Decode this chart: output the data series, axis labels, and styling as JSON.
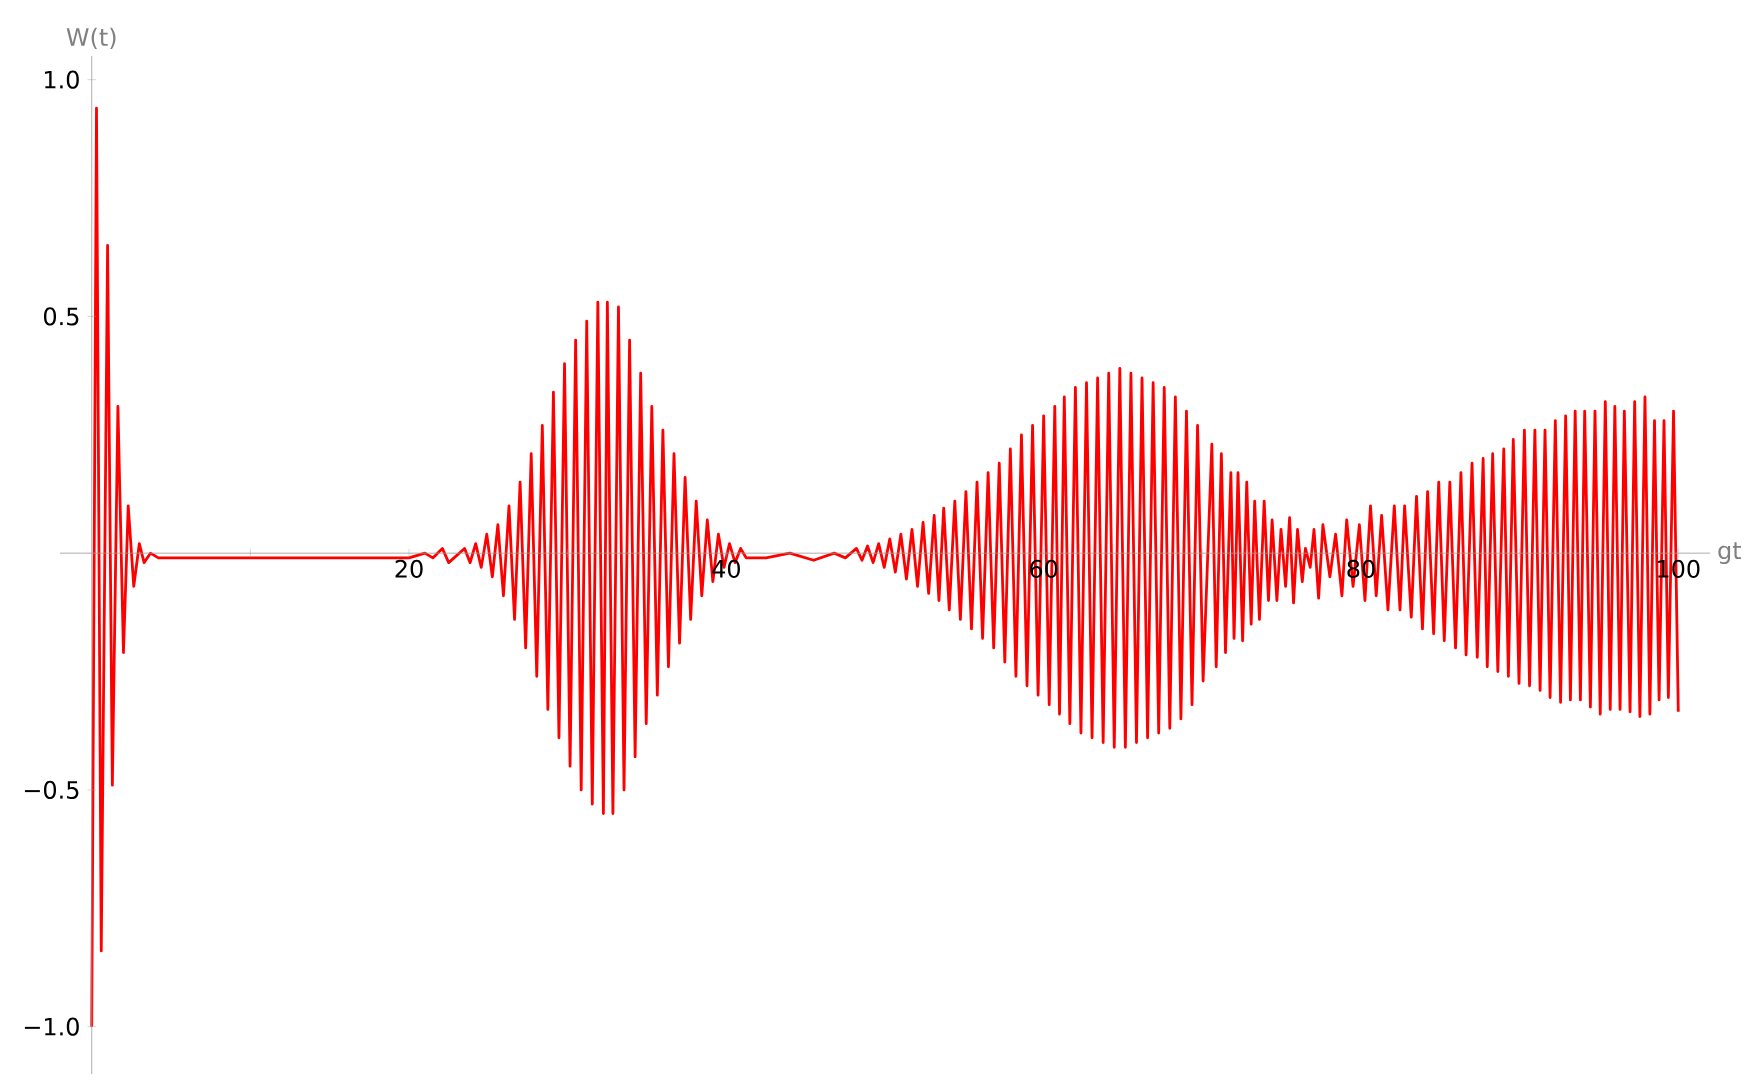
{
  "chart_data": {
    "type": "line",
    "xlabel": "gt",
    "ylabel": "W(t)",
    "xlim": [
      -2,
      102
    ],
    "ylim": [
      -1.1,
      1.05
    ],
    "xticks": [
      {
        "value": 10,
        "label": null
      },
      20,
      {
        "value": 30,
        "label": null
      },
      40,
      {
        "value": 50,
        "label": null
      },
      60,
      {
        "value": 70,
        "label": null
      },
      80,
      {
        "value": 90,
        "label": null
      },
      100
    ],
    "yticks": [
      {
        "value": -1,
        "label": "−1.0"
      },
      {
        "value": -0.5,
        "label": "−0.5"
      },
      {
        "value": 0.5,
        "label": "0.5"
      },
      {
        "value": 1,
        "label": "1.0"
      }
    ],
    "grid": false,
    "marker": "none",
    "line_style": "solid",
    "x": [
      0,
      0.3,
      0.6,
      1.0,
      1.3,
      1.65,
      2.0,
      2.3,
      2.65,
      3.0,
      3.3,
      3.7,
      4.2,
      10,
      20,
      21,
      21.5,
      22.1,
      22.5,
      23.5,
      23.85,
      24.2,
      24.55,
      24.9,
      25.25,
      25.6,
      25.95,
      26.3,
      26.65,
      27.0,
      27.35,
      27.7,
      28.05,
      28.4,
      28.75,
      29.1,
      29.45,
      29.8,
      30.15,
      30.5,
      30.85,
      31.2,
      31.55,
      31.9,
      32.25,
      32.5,
      32.85,
      33.2,
      33.55,
      33.9,
      34.25,
      34.6,
      34.95,
      35.3,
      35.65,
      36.0,
      36.35,
      36.7,
      37.05,
      37.4,
      37.75,
      38.1,
      38.45,
      38.8,
      39.15,
      39.5,
      39.85,
      40.2,
      40.55,
      40.9,
      41.25,
      42.5,
      44.0,
      45.5,
      46.8,
      47.5,
      48.2,
      48.55,
      48.9,
      49.25,
      49.6,
      49.95,
      50.3,
      50.65,
      51.0,
      51.35,
      51.7,
      52.05,
      52.4,
      52.75,
      53.1,
      53.4,
      53.7,
      54.05,
      54.4,
      54.75,
      55.1,
      55.45,
      55.8,
      56.15,
      56.5,
      56.85,
      57.2,
      57.55,
      57.9,
      58.25,
      58.6,
      58.95,
      59.3,
      59.65,
      60.0,
      60.35,
      60.7,
      61.0,
      61.3,
      61.65,
      62.0,
      62.35,
      62.7,
      63.05,
      63.4,
      63.75,
      64.1,
      64.45,
      64.8,
      65.15,
      65.5,
      65.85,
      66.2,
      66.55,
      66.9,
      67.25,
      67.6,
      67.95,
      68.3,
      68.65,
      69.0,
      69.35,
      69.7,
      70.05,
      70.6,
      70.875,
      71.2,
      71.46,
      71.8,
      72.0,
      72.25,
      72.54,
      72.8,
      73.08,
      73.3,
      73.6,
      73.9,
      74.17,
      74.4,
      74.7,
      74.96,
      75.25,
      75.5,
      75.75,
      76.0,
      76.3,
      76.5,
      76.8,
      77.04,
      77.33,
      77.6,
      78.04,
      78.4,
      78.8,
      79.1,
      79.5,
      79.9,
      80.25,
      80.6,
      80.96,
      81.3,
      81.7,
      82.1,
      82.46,
      82.75,
      83.17,
      83.5,
      83.875,
      84.2,
      84.58,
      84.9,
      85.25,
      85.6,
      85.96,
      86.3,
      86.625,
      87.0,
      87.33,
      87.7,
      87.96,
      88.3,
      88.625,
      89.0,
      89.29,
      89.6,
      89.96,
      90.3,
      90.625,
      90.96,
      91.29,
      91.6,
      91.92,
      92.25,
      92.58,
      92.9,
      93.2,
      93.5,
      93.83,
      94.1,
      94.46,
      94.75,
      95.08,
      95.4,
      95.71,
      96.0,
      96.33,
      96.6,
      96.96,
      97.25,
      97.58,
      97.9,
      98.21,
      98.5,
      98.79,
      99.1,
      99.375,
      99.7,
      100
    ],
    "series": [
      {
        "color": "#ff0000",
        "values": [
          -1.0,
          0.94,
          -0.84,
          0.65,
          -0.49,
          0.31,
          -0.21,
          0.1,
          -0.07,
          0.02,
          -0.02,
          0.0,
          -0.01,
          -0.01,
          -0.01,
          0.0,
          -0.01,
          0.01,
          -0.02,
          0.01,
          -0.02,
          0.02,
          -0.03,
          0.04,
          -0.05,
          0.06,
          -0.09,
          0.1,
          -0.14,
          0.15,
          -0.2,
          0.21,
          -0.26,
          0.27,
          -0.33,
          0.34,
          -0.39,
          0.4,
          -0.45,
          0.45,
          -0.5,
          0.49,
          -0.53,
          0.53,
          -0.55,
          0.53,
          -0.55,
          0.52,
          -0.5,
          0.45,
          -0.43,
          0.38,
          -0.36,
          0.31,
          -0.3,
          0.26,
          -0.24,
          0.21,
          -0.19,
          0.16,
          -0.14,
          0.11,
          -0.09,
          0.07,
          -0.06,
          0.04,
          -0.03,
          0.02,
          -0.02,
          0.01,
          -0.01,
          -0.01,
          0.0,
          -0.015,
          0.0,
          -0.01,
          0.01,
          -0.015,
          0.015,
          -0.02,
          0.02,
          -0.03,
          0.03,
          -0.04,
          0.04,
          -0.055,
          0.05,
          -0.07,
          0.065,
          -0.085,
          0.08,
          -0.1,
          0.095,
          -0.12,
          0.11,
          -0.14,
          0.13,
          -0.16,
          0.15,
          -0.18,
          0.17,
          -0.2,
          0.19,
          -0.23,
          0.22,
          -0.26,
          0.25,
          -0.28,
          0.27,
          -0.3,
          0.29,
          -0.32,
          0.31,
          -0.34,
          0.33,
          -0.36,
          0.35,
          -0.38,
          0.36,
          -0.39,
          0.37,
          -0.4,
          0.38,
          -0.41,
          0.39,
          -0.41,
          0.38,
          -0.4,
          0.37,
          -0.39,
          0.36,
          -0.38,
          0.35,
          -0.37,
          0.33,
          -0.35,
          0.3,
          -0.32,
          0.27,
          -0.27,
          0.23,
          -0.24,
          0.21,
          -0.21,
          0.17,
          -0.18,
          0.17,
          -0.185,
          0.15,
          -0.15,
          0.11,
          -0.14,
          0.11,
          -0.1,
          0.07,
          -0.1,
          0.05,
          -0.07,
          0.075,
          -0.105,
          0.05,
          -0.06,
          0.01,
          -0.03,
          0.05,
          -0.095,
          0.06,
          -0.05,
          0.04,
          -0.09,
          0.07,
          -0.07,
          0.06,
          -0.1,
          0.1,
          -0.09,
          0.08,
          -0.12,
          0.1,
          -0.12,
          0.1,
          -0.135,
          0.12,
          -0.16,
          0.13,
          -0.17,
          0.15,
          -0.185,
          0.15,
          -0.2,
          0.17,
          -0.215,
          0.19,
          -0.22,
          0.2,
          -0.24,
          0.21,
          -0.25,
          0.22,
          -0.26,
          0.24,
          -0.275,
          0.26,
          -0.28,
          0.26,
          -0.29,
          0.26,
          -0.305,
          0.28,
          -0.315,
          0.29,
          -0.31,
          0.3,
          -0.31,
          0.3,
          -0.325,
          0.3,
          -0.34,
          0.32,
          -0.33,
          0.31,
          -0.33,
          0.3,
          -0.335,
          0.32,
          -0.345,
          0.33,
          -0.34,
          0.28,
          -0.31,
          0.28,
          -0.305,
          0.3,
          -0.335
        ]
      }
    ]
  }
}
